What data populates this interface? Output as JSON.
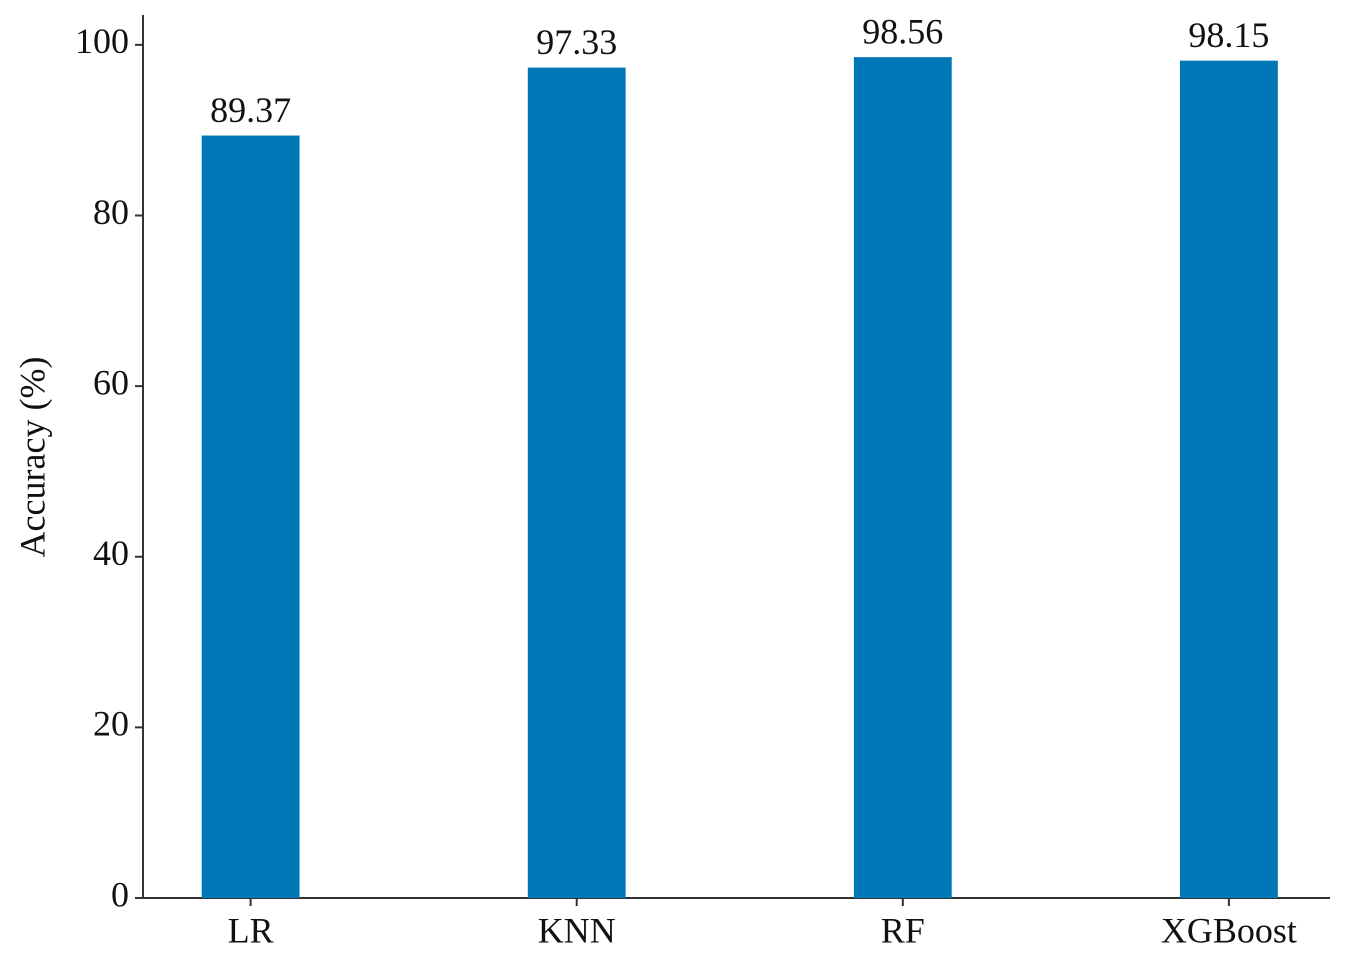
{
  "chart_data": {
    "type": "bar",
    "y_label": "Accuracy (%)",
    "categories": [
      "LR",
      "KNN",
      "RF",
      "XGBoost"
    ],
    "values": [
      89.37,
      97.33,
      98.56,
      98.15
    ],
    "color": "#0077b6",
    "ylim": [
      0,
      103.5
    ],
    "yticks": [
      0,
      20,
      40,
      60,
      80,
      100
    ],
    "grid": false
  }
}
